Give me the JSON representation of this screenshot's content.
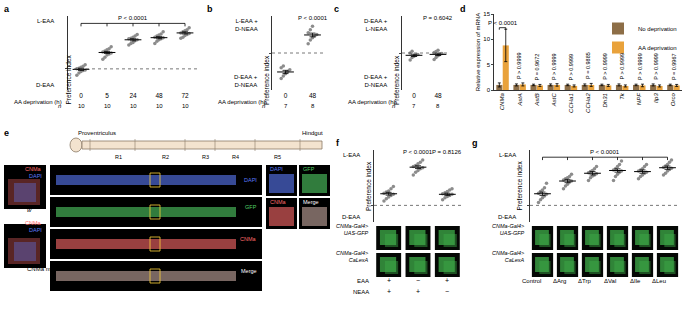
{
  "chart_data": [
    {
      "panel": "a",
      "type": "dot",
      "y_title": "Preference index",
      "top_label": "L-EAA",
      "bottom_label": "D-EAA",
      "x_title": "AA deprivation (h)",
      "categories": [
        "0",
        "5",
        "24",
        "48",
        "72"
      ],
      "n_label": "n",
      "n": [
        10,
        10,
        10,
        10,
        10
      ],
      "groups": [
        [
          -0.12,
          -0.08,
          -0.05,
          -0.03,
          -0.02,
          0.0,
          0.01,
          0.03,
          0.05,
          0.08
        ],
        [
          0.18,
          0.22,
          0.26,
          0.28,
          0.3,
          0.32,
          0.34,
          0.36,
          0.38,
          0.42
        ],
        [
          0.45,
          0.48,
          0.5,
          0.53,
          0.55,
          0.57,
          0.58,
          0.6,
          0.62,
          0.65
        ],
        [
          0.48,
          0.52,
          0.55,
          0.57,
          0.59,
          0.6,
          0.62,
          0.64,
          0.66,
          0.7
        ],
        [
          0.58,
          0.6,
          0.63,
          0.65,
          0.67,
          0.68,
          0.7,
          0.72,
          0.74,
          0.78
        ]
      ],
      "mean": [
        -0.01,
        0.31,
        0.55,
        0.59,
        0.68
      ],
      "error": [
        0.02,
        0.02,
        0.02,
        0.02,
        0.02
      ],
      "color": "#8c8c8c",
      "ylim": [
        -0.4,
        1.0
      ],
      "yticks": [
        0
      ],
      "baseline": 0,
      "tick_labels": "x",
      "comparisons": [
        {
          "text": "P < 0.0001",
          "from": 0,
          "to": [
            1,
            2,
            3,
            4
          ]
        }
      ]
    },
    {
      "panel": "b",
      "type": "dot",
      "y_title": "Preference index",
      "top_label": "L-EAA +\nD-NEAA",
      "bottom_label": "D-EAA +\nD-NEAA",
      "x_title": "AA deprivation (h)",
      "categories": [
        "0",
        "48"
      ],
      "n_label": "n",
      "n": [
        7,
        8
      ],
      "groups": [
        [
          -0.55,
          -0.5,
          -0.45,
          -0.4,
          -0.36,
          -0.32,
          -0.28
        ],
        [
          0.2,
          0.28,
          0.33,
          0.37,
          0.4,
          0.44,
          0.5,
          0.58
        ]
      ],
      "mean": [
        -0.41,
        0.39
      ],
      "error": [
        0.035,
        0.04
      ],
      "color": "#8c8c8c",
      "ylim": [
        -0.8,
        0.8
      ],
      "yticks": [
        0
      ],
      "baseline": 0,
      "tick_labels": "x",
      "comparisons": [
        {
          "text": "P < 0.0001",
          "at": 1
        }
      ]
    },
    {
      "panel": "c",
      "type": "dot",
      "y_title": "Preference index",
      "top_label": "D-EAA +\nL-NEAA",
      "bottom_label": "D-EAA +\nD-NEAA",
      "x_title": "AA deprivation (h)",
      "categories": [
        "0",
        "48"
      ],
      "n_label": "n",
      "n": [
        7,
        8
      ],
      "groups": [
        [
          -0.15,
          -0.1,
          -0.07,
          -0.05,
          -0.03,
          0.0,
          0.04
        ],
        [
          -0.14,
          -0.1,
          -0.06,
          -0.03,
          -0.01,
          0.01,
          0.03,
          0.06
        ]
      ],
      "mean": [
        -0.05,
        -0.03
      ],
      "error": [
        0.025,
        0.025
      ],
      "color": "#8c8c8c",
      "ylim": [
        -0.8,
        0.8
      ],
      "yticks": [
        0
      ],
      "baseline": 0,
      "tick_labels": "x",
      "comparisons": [
        {
          "text": "P = 0.6042",
          "at": 1
        }
      ]
    },
    {
      "panel": "d",
      "type": "bar",
      "y_title": "Relative expression of mRNA",
      "categories": [
        "CNMa",
        "AstA",
        "AstB",
        "AstC",
        "CCHa1",
        "CCHa2",
        "Dh31",
        "Tk",
        "NPF",
        "Ilp3",
        "Orco"
      ],
      "series": [
        {
          "name": "No deprivation",
          "color": "#8d6e47",
          "values": [
            1,
            1,
            1,
            1,
            1,
            1,
            1,
            1,
            1,
            1,
            1
          ],
          "error": [
            0.4,
            0.2,
            0.15,
            0.2,
            0.15,
            0.2,
            0.15,
            0.2,
            0.15,
            0.2,
            0.15
          ]
        },
        {
          "name": "AA deprivation",
          "color": "#e9a23b",
          "values": [
            8.8,
            1.1,
            0.9,
            1.0,
            0.8,
            1.0,
            0.9,
            0.8,
            0.9,
            0.8,
            0.9
          ],
          "error": [
            3.2,
            0.3,
            0.2,
            0.25,
            0.2,
            0.3,
            0.2,
            0.2,
            0.25,
            0.2,
            0.2
          ]
        }
      ],
      "p_values": [
        "P < 0.0001",
        "P > 0.9999",
        "P = 0.9672",
        "P > 0.9999",
        "P > 0.9999",
        "P = 0.9885",
        "P > 0.9999",
        "P > 0.9999",
        "P > 0.9999",
        "P > 0.9999",
        "P = 0.9967"
      ],
      "ylim": [
        0,
        15
      ],
      "yticks": [
        0,
        5,
        10,
        15
      ],
      "legend": "top-right"
    },
    {
      "panel": "e",
      "type": "image_panel",
      "gut": {
        "labels": [
          "Proventriculus",
          "Hindgut"
        ],
        "regions": [
          "R1",
          "R2",
          "R3",
          "R4",
          "R5"
        ]
      },
      "channels": [
        {
          "name": "DAPI",
          "color": "#5c7cfa"
        },
        {
          "name": "GFP",
          "color": "#51cf66"
        },
        {
          "name": "CNMa",
          "color": "#ff6b6b"
        },
        {
          "name": "Merge",
          "color": "#ffffff"
        }
      ],
      "side_images": [
        {
          "caption": "w",
          "caption_sup": "1118",
          "channels": [
            "CNMa",
            "DAPI"
          ]
        },
        {
          "caption": "CNMa mutant",
          "channels": [
            "CNMa",
            "DAPI"
          ]
        }
      ]
    },
    {
      "panel": "f",
      "type": "dot",
      "y_title": "Preference index",
      "top_label": "L-EAA",
      "bottom_label": "D-EAA",
      "groups": [
        [
          0.08,
          0.12,
          0.15,
          0.18,
          0.2,
          0.22,
          0.24,
          0.26,
          0.3,
          0.34
        ],
        [
          0.55,
          0.6,
          0.63,
          0.66,
          0.68,
          0.7,
          0.72,
          0.75,
          0.78,
          0.82
        ],
        [
          0.1,
          0.14,
          0.16,
          0.18,
          0.2,
          0.21,
          0.23,
          0.25,
          0.28,
          0.3
        ]
      ],
      "mean": [
        0.21,
        0.69,
        0.2
      ],
      "error": [
        0.025,
        0.025,
        0.02
      ],
      "color": "#8c8c8c",
      "ylim": [
        -0.3,
        1.0
      ],
      "yticks": [
        0
      ],
      "baseline": 0,
      "tick_labels": false,
      "comparisons": [
        {
          "text": "P < 0.0001",
          "at": 1
        },
        {
          "text": "P = 0.8126",
          "at": 2
        }
      ],
      "image_rows": [
        "CNMa-Gal4>\nUAS-GFP",
        "CNMa-Gal4>\nCaLexA"
      ],
      "image_color": "#3fae49",
      "conditions": [
        {
          "label": "EAA",
          "values": [
            "+",
            "−",
            "+"
          ]
        },
        {
          "label": "NEAA",
          "values": [
            "+",
            "+",
            "−"
          ]
        }
      ]
    },
    {
      "panel": "g",
      "type": "dot",
      "y_title": "Preference index",
      "top_label": "L-EAA",
      "bottom_label": "D-EAA",
      "categories": [
        "Control",
        "ΔArg",
        "ΔTrp",
        "ΔVal",
        "ΔIle",
        "ΔLeu"
      ],
      "groups": [
        [
          0.05,
          0.1,
          0.14,
          0.17,
          0.2,
          0.22,
          0.25,
          0.28,
          0.32,
          0.4
        ],
        [
          0.3,
          0.35,
          0.38,
          0.42,
          0.44,
          0.46,
          0.48,
          0.5,
          0.52,
          0.56
        ],
        [
          0.45,
          0.5,
          0.53,
          0.55,
          0.57,
          0.59,
          0.61,
          0.63,
          0.66,
          0.7
        ],
        [
          0.45,
          0.52,
          0.56,
          0.6,
          0.62,
          0.64,
          0.66,
          0.7,
          0.74,
          0.8
        ],
        [
          0.48,
          0.52,
          0.55,
          0.58,
          0.6,
          0.62,
          0.64,
          0.66,
          0.7,
          0.74
        ],
        [
          0.55,
          0.58,
          0.62,
          0.65,
          0.67,
          0.69,
          0.71,
          0.74,
          0.78,
          0.82
        ]
      ],
      "mean": [
        0.21,
        0.44,
        0.58,
        0.63,
        0.61,
        0.68
      ],
      "error": [
        0.03,
        0.03,
        0.03,
        0.03,
        0.03,
        0.03
      ],
      "color": "#8c8c8c",
      "ylim": [
        -0.3,
        1.0
      ],
      "yticks": [
        0
      ],
      "baseline": 0,
      "tick_labels": false,
      "comparisons": [
        {
          "text": "P < 0.0001",
          "from": 0,
          "to": [
            1,
            2,
            3,
            4,
            5
          ]
        }
      ],
      "image_rows": [
        "CNMa-Gal4>\nUAS-GFP",
        "CNMa-Gal4>\nCaLexA"
      ],
      "image_color": "#3fae49"
    }
  ]
}
